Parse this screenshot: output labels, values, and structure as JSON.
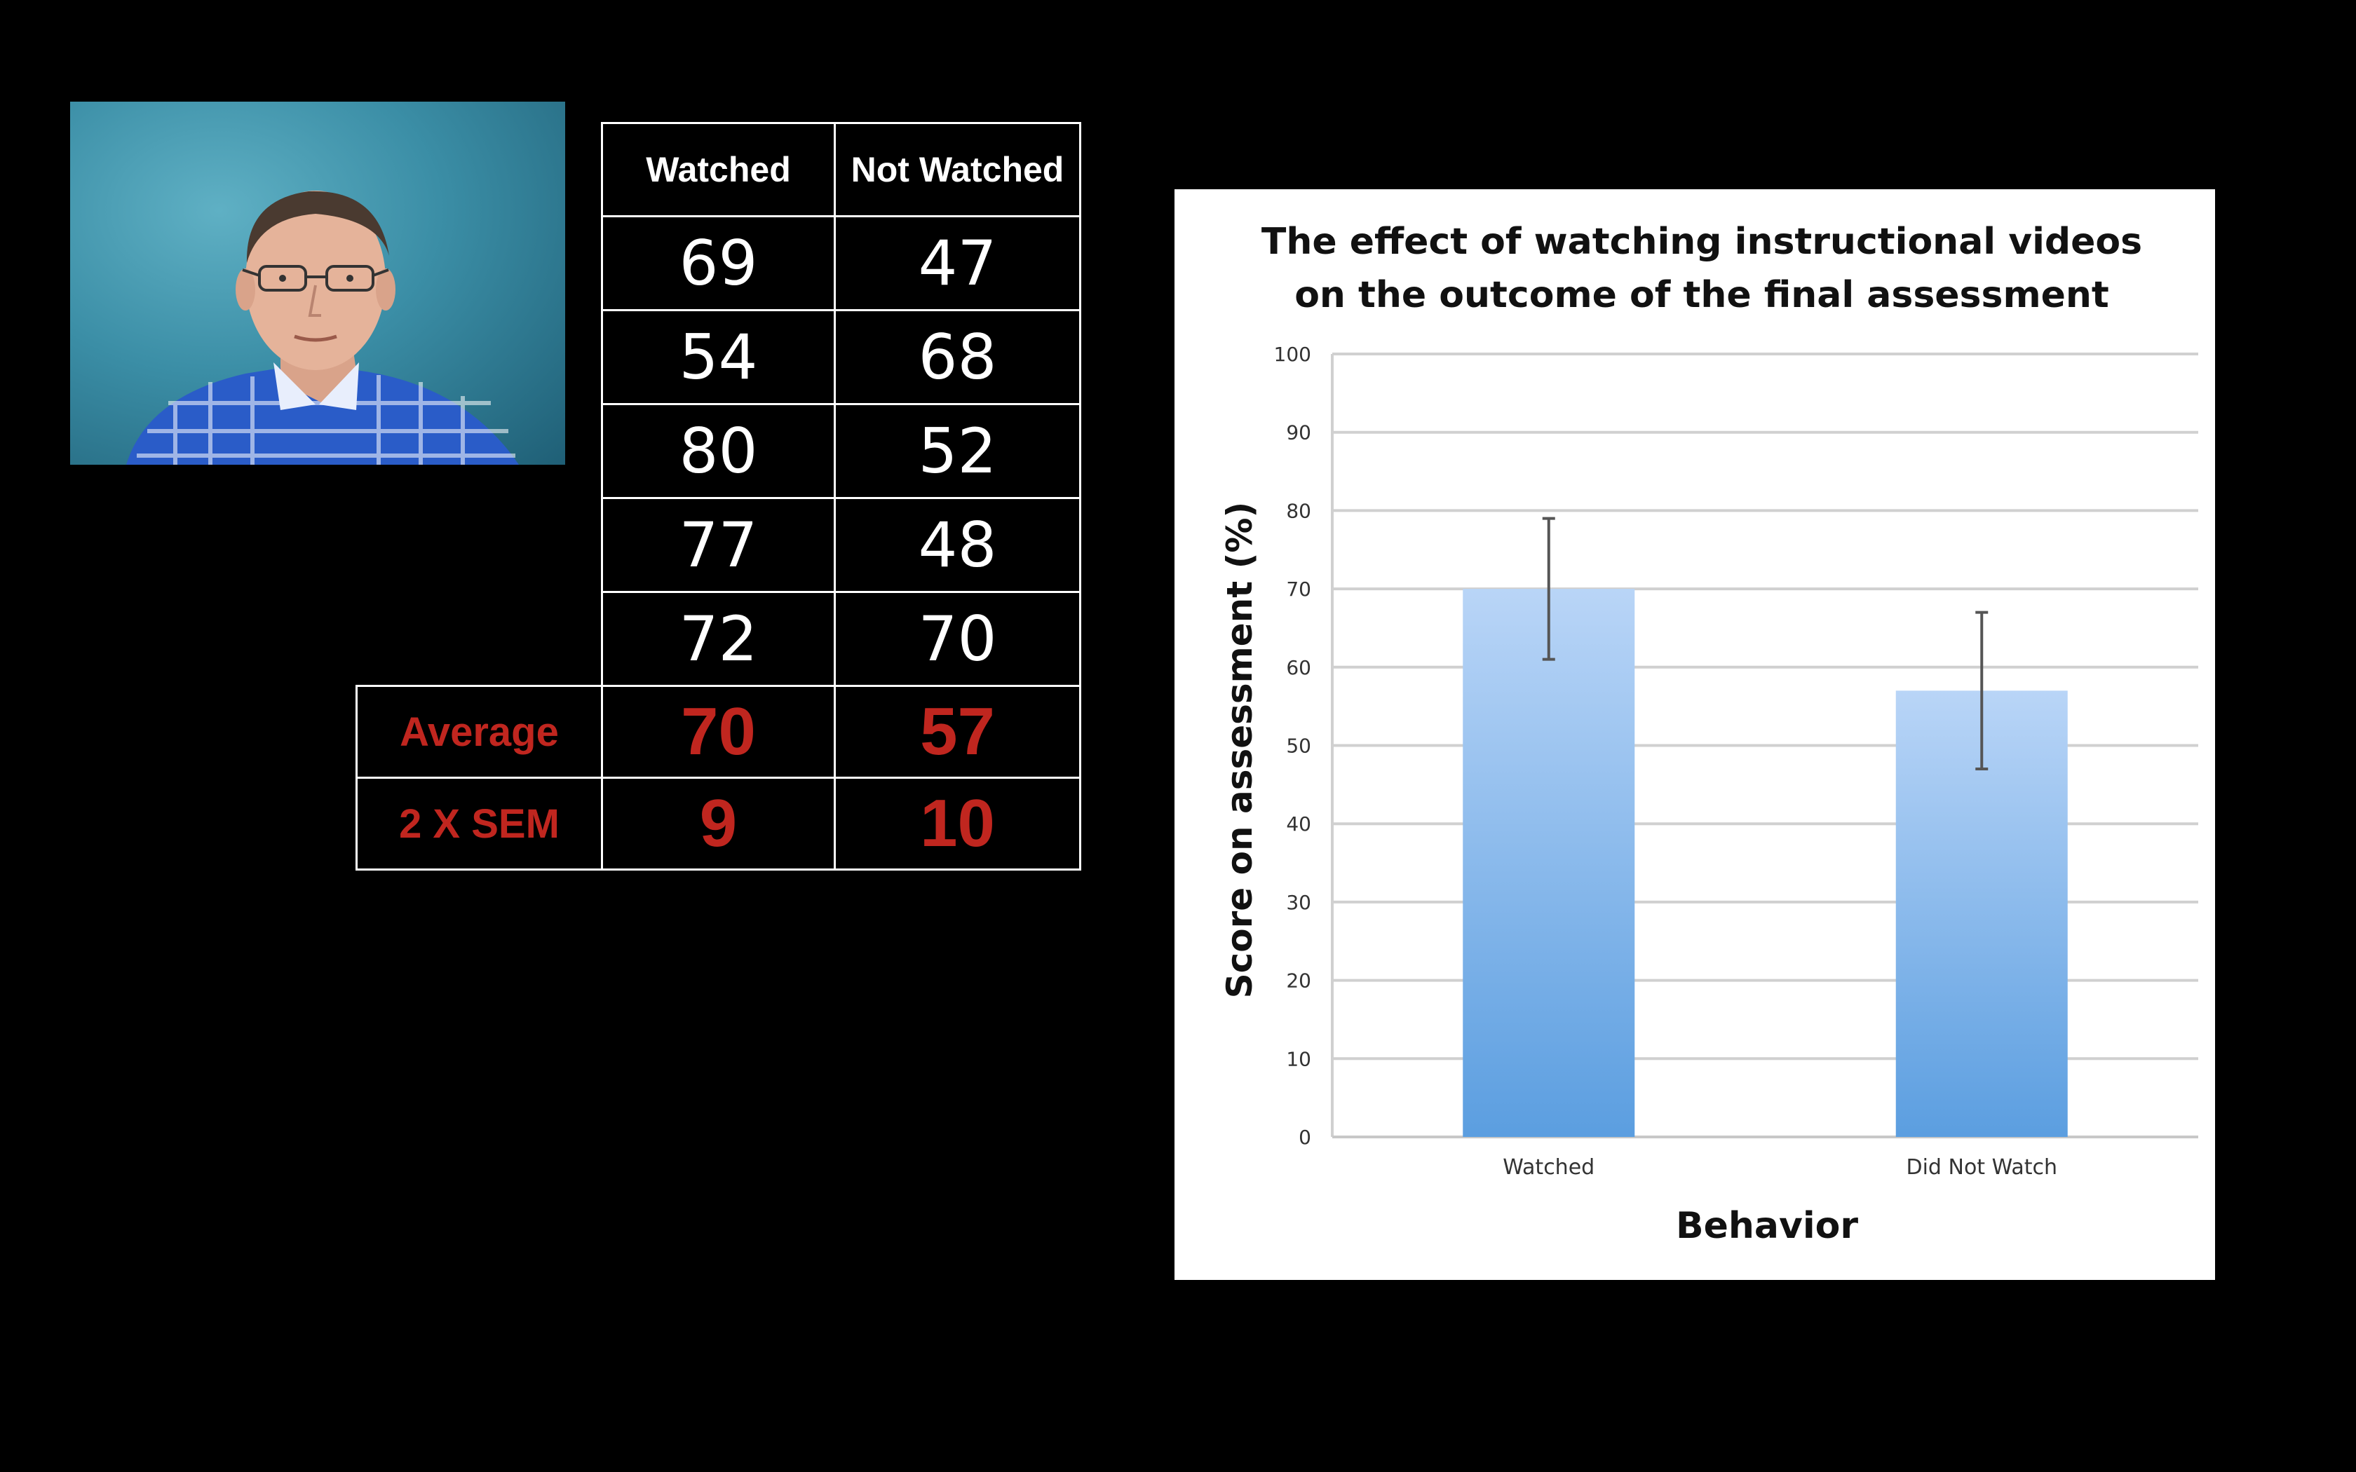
{
  "table": {
    "headers": [
      "Watched",
      "Not Watched"
    ],
    "rows": [
      [
        69,
        47
      ],
      [
        54,
        68
      ],
      [
        80,
        52
      ],
      [
        77,
        48
      ],
      [
        72,
        70
      ]
    ],
    "summary": [
      {
        "label": "Average",
        "values": [
          70,
          57
        ]
      },
      {
        "label": "2 X SEM",
        "values": [
          9,
          10
        ]
      }
    ]
  },
  "chart_data": {
    "type": "bar",
    "title_lines": [
      "The effect of watching instructional videos",
      "on the outcome of the final assessment"
    ],
    "xlabel": "Behavior",
    "ylabel": "Score on assessment (%)",
    "categories": [
      "Watched",
      "Did Not Watch"
    ],
    "values": [
      70,
      57
    ],
    "error_bars": [
      9,
      10
    ],
    "ylim": [
      0,
      100
    ],
    "yticks": [
      0,
      10,
      20,
      30,
      40,
      50,
      60,
      70,
      80,
      90,
      100
    ],
    "grid": true,
    "legend": "none",
    "bar_color_top": "#b9d5f7",
    "bar_color_bottom": "#5b9ee0"
  },
  "video": {
    "background_color": "#3b8ea6",
    "shirt_color": "#2a5cc8"
  }
}
